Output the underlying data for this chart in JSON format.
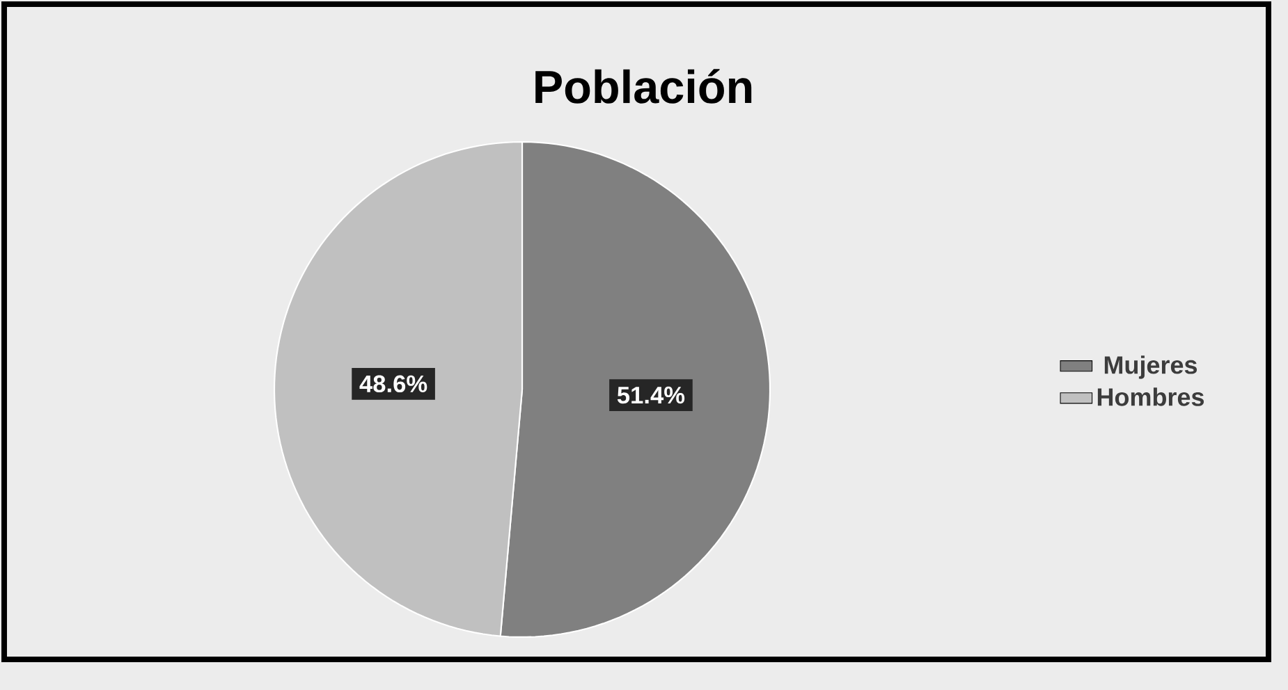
{
  "chart_data": {
    "type": "pie",
    "title": "Población",
    "categories": [
      "Mujeres",
      "Hombres"
    ],
    "values": [
      51.4,
      48.6
    ],
    "value_labels": [
      "51.4%",
      "48.6%"
    ],
    "colors": [
      "#808080",
      "#c0c0c0"
    ],
    "legend": "right"
  }
}
